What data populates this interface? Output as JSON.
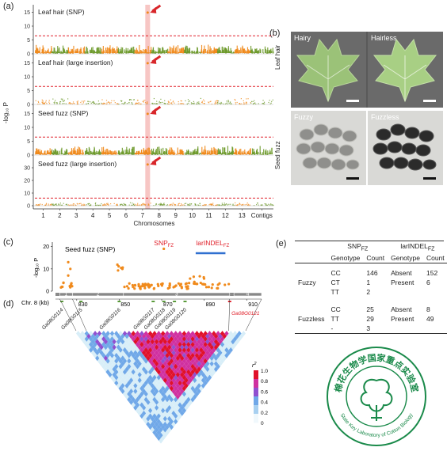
{
  "panels": {
    "a": "(a)",
    "b": "(b)",
    "c": "(c)",
    "d": "(d)",
    "e": "(e)"
  },
  "manhattan": {
    "ylabel": "-log₁₀ P",
    "xlabel": "Chromosomes",
    "chromosomes": [
      "1",
      "2",
      "3",
      "4",
      "5",
      "6",
      "7",
      "8",
      "9",
      "10",
      "11",
      "12",
      "13",
      "Contigs"
    ],
    "tracks": [
      {
        "title": "Leaf hair (SNP)",
        "yticks": [
          "0",
          "5",
          "10",
          "15"
        ],
        "ymax": 16
      },
      {
        "title": "Leaf hair (large insertion)",
        "yticks": [
          "0",
          "5",
          "10",
          "15"
        ],
        "ymax": 16
      },
      {
        "title": "Seed fuzz (SNP)",
        "yticks": [
          "0",
          "5",
          "10",
          "15"
        ],
        "ymax": 16
      },
      {
        "title": "Seed fuzz (large insertion)",
        "yticks": [
          "0",
          "10",
          "20",
          "30"
        ],
        "ymax": 35
      }
    ],
    "colors": {
      "odd": "#f08a1c",
      "even": "#6e9a2c",
      "threshold": "#e0202a",
      "highlight": "#f7c6c4",
      "arrow": "#d8262a"
    }
  },
  "photos": {
    "row1_label": "Leaf hair",
    "row2_label": "Seed fuzz",
    "hairy": "Hairy",
    "hairless": "Hairless",
    "fuzzy": "Fuzzy",
    "fuzzless": "Fuzzless"
  },
  "regional": {
    "title": "Seed fuzz (SNP)",
    "ylabel": "-log₁₀ P",
    "yticks": [
      "0",
      "10",
      "20"
    ],
    "snp_label": "SNP",
    "snp_sub": "FZ",
    "indel_label": "larINDEL",
    "indel_sub": "FZ",
    "chr_label": "Chr. 8 (kb)",
    "kb_ticks": [
      "830",
      "850",
      "870",
      "890",
      "910"
    ],
    "blocks": [
      "1",
      "2",
      "3",
      "4"
    ],
    "genes": [
      "Ga08G0114",
      "Ga08G0115",
      "Ga08G0116",
      "Ga08G0117",
      "Ga08G0118",
      "Ga08G0119",
      "Ga08G0120",
      "Ga08G0121"
    ],
    "r2_label": "r",
    "r2_sup": "2",
    "r2_ticks": [
      "1.0",
      "0.8",
      "0.6",
      "0.4",
      "0.2",
      "0"
    ]
  },
  "table": {
    "header1": [
      "SNP",
      "larINDEL"
    ],
    "header_sub": "FZ",
    "header2": [
      "Genotype",
      "Count",
      "Genotype",
      "Count"
    ],
    "groups": [
      {
        "name": "Fuzzy",
        "rows": [
          [
            "CC",
            "146",
            "Absent",
            "152"
          ],
          [
            "CT",
            "1",
            "Present",
            "6"
          ],
          [
            "TT",
            "2",
            "",
            ""
          ]
        ]
      },
      {
        "name": "Fuzzless",
        "rows": [
          [
            "CC",
            "25",
            "Absent",
            "8"
          ],
          [
            "TT",
            "29",
            "Present",
            "49"
          ],
          [
            "-",
            "3",
            "",
            ""
          ]
        ]
      }
    ]
  },
  "logo": {
    "top_text": "棉花生物学国家重点实验室",
    "bottom_text": "State Key Laboratory of Cotton Biology",
    "color": "#1a8a4a"
  }
}
